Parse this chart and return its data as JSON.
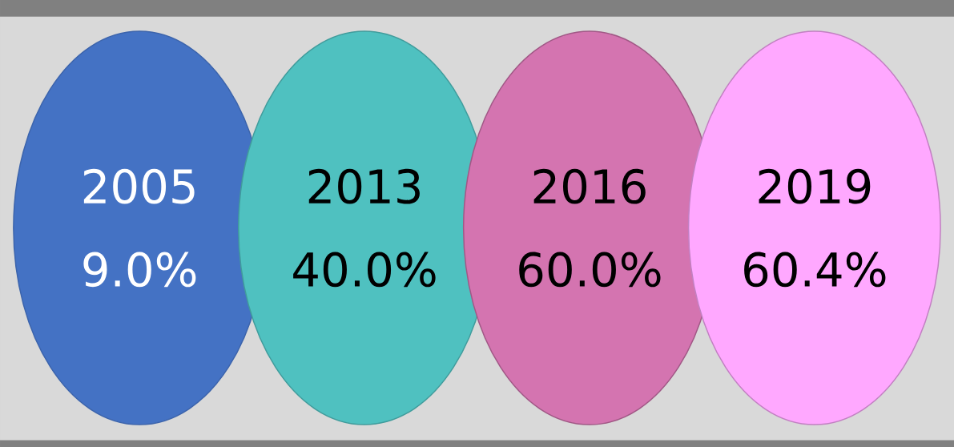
{
  "chart_data": {
    "type": "other",
    "categories": [
      "2005",
      "2013",
      "2016",
      "2019"
    ],
    "values": [
      9.0,
      40.0,
      60.0,
      60.4
    ],
    "value_labels": [
      "9.0%",
      "40.0%",
      "60.0%",
      "60.4%"
    ],
    "colors": [
      "#4472c4",
      "#4fc1c0",
      "#d474b0",
      "#ffa8ff"
    ]
  }
}
